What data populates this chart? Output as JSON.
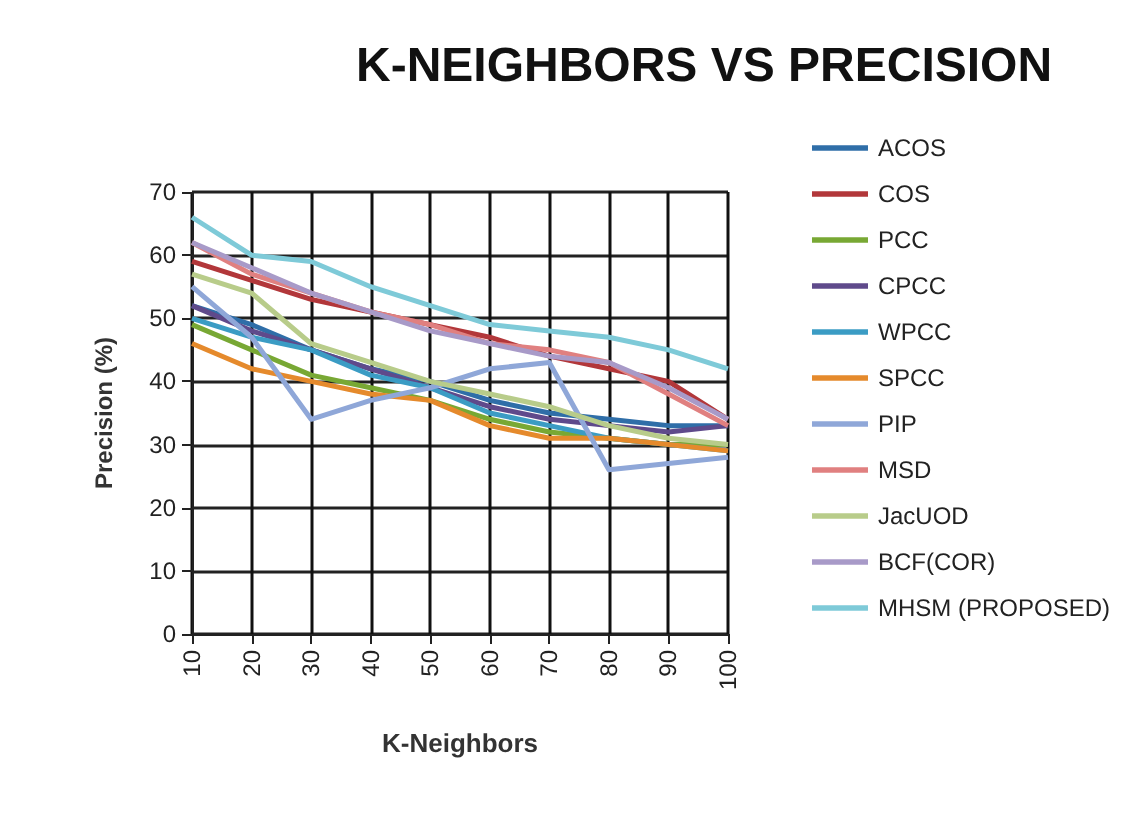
{
  "chart_data": {
    "type": "line",
    "title": "K-NEIGHBORS VS PRECISION",
    "xlabel": "K-Neighbors",
    "ylabel": "Precision (%)",
    "categories": [
      "10",
      "20",
      "30",
      "40",
      "50",
      "60",
      "70",
      "80",
      "90",
      "100"
    ],
    "ylim": [
      0,
      70
    ],
    "yticks": [
      0,
      10,
      20,
      30,
      40,
      50,
      60,
      70
    ],
    "grid": true,
    "legend": "right",
    "marker": "none",
    "line_style": "solid",
    "series": [
      {
        "name": "ACOS",
        "color": "#2f6ea8",
        "values": [
          52,
          49,
          45,
          42,
          40,
          37,
          35,
          34,
          33,
          33
        ]
      },
      {
        "name": "COS",
        "color": "#b2373a",
        "values": [
          59,
          56,
          53,
          51,
          49,
          47,
          44,
          42,
          40,
          34
        ]
      },
      {
        "name": "PCC",
        "color": "#78a834",
        "values": [
          49,
          45,
          41,
          39,
          37,
          34,
          32,
          31,
          30,
          30
        ]
      },
      {
        "name": "CPCC",
        "color": "#5f4a8b",
        "values": [
          52,
          48,
          45,
          42,
          39,
          36,
          34,
          33,
          32,
          33
        ]
      },
      {
        "name": "WPCC",
        "color": "#3b9cc4",
        "values": [
          50,
          47,
          45,
          41,
          39,
          35,
          33,
          31,
          30,
          29
        ]
      },
      {
        "name": "SPCC",
        "color": "#e58a2c",
        "values": [
          46,
          42,
          40,
          38,
          37,
          33,
          31,
          31,
          30,
          29
        ]
      },
      {
        "name": "PIP",
        "color": "#8fa7d8",
        "values": [
          55,
          47,
          34,
          37,
          39,
          42,
          43,
          26,
          27,
          28
        ]
      },
      {
        "name": "MSD",
        "color": "#e08080",
        "values": [
          62,
          57,
          54,
          51,
          49,
          46,
          45,
          43,
          38,
          33
        ]
      },
      {
        "name": "JacUOD",
        "color": "#b8cc8a",
        "values": [
          57,
          54,
          46,
          43,
          40,
          38,
          36,
          33,
          31,
          30
        ]
      },
      {
        "name": "BCF(COR)",
        "color": "#a89ac8",
        "values": [
          62,
          58,
          54,
          51,
          48,
          46,
          44,
          43,
          39,
          34
        ]
      },
      {
        "name": "MHSM (PROPOSED)",
        "color": "#7ecad8",
        "values": [
          66,
          60,
          59,
          55,
          52,
          49,
          48,
          47,
          45,
          42
        ]
      }
    ]
  }
}
